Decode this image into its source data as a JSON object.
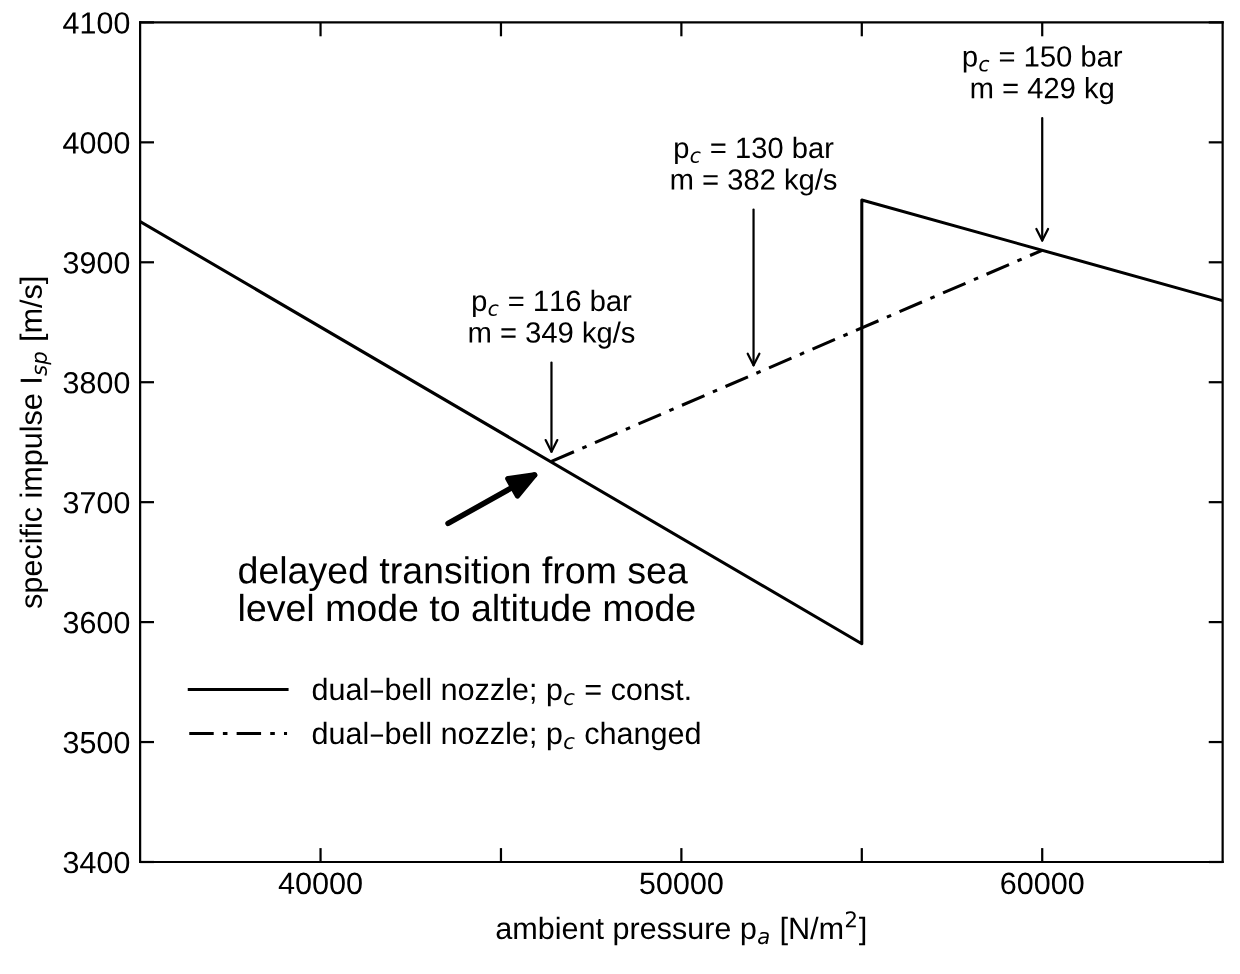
{
  "chart_data": {
    "type": "line",
    "xlabel": "ambient pressure p$_{a}$ [N/m$^{2}$]",
    "ylabel": "specific impulse I$_{sp}$ [m/s]",
    "xlim": [
      35000,
      65000
    ],
    "ylim": [
      3400,
      4100
    ],
    "xticks": [
      40000,
      {
        "value": 45000,
        "label": null
      },
      50000,
      {
        "value": 55000,
        "label": null
      },
      60000
    ],
    "yticks": [
      3400,
      3500,
      3600,
      3700,
      3800,
      3900,
      4000,
      4100
    ],
    "grid": false,
    "legend": "bottom left",
    "series": [
      {
        "name": "dual–bell nozzle; p$_{c}$ = const.",
        "color": "#000000",
        "line_style": "solid",
        "x": [
          35000,
          55000,
          55000,
          65000
        ],
        "values": [
          3934,
          3582,
          3952,
          3868
        ]
      },
      {
        "name": "dual–bell nozzle; p$_{c}$ changed",
        "color": "#000000",
        "line_style": "dashdot",
        "x": [
          46400,
          60000
        ],
        "values": [
          3734,
          3910
        ]
      }
    ],
    "annotations": [
      {
        "text": "p$_{c}$ = 116 bar\nm = 349 kg/s",
        "x": 46400,
        "y": 3734
      },
      {
        "text": "p$_{c}$ = 130 bar\nm = 382 kg/s",
        "x": 52000,
        "y": 3806
      },
      {
        "text": "p$_{c}$ = 150 bar\nm = 429 kg",
        "x": 60000,
        "y": 3910
      },
      {
        "text": "delayed transition from sea\nlevel mode to altitude mode",
        "x": 46400,
        "y": 3734
      }
    ]
  }
}
